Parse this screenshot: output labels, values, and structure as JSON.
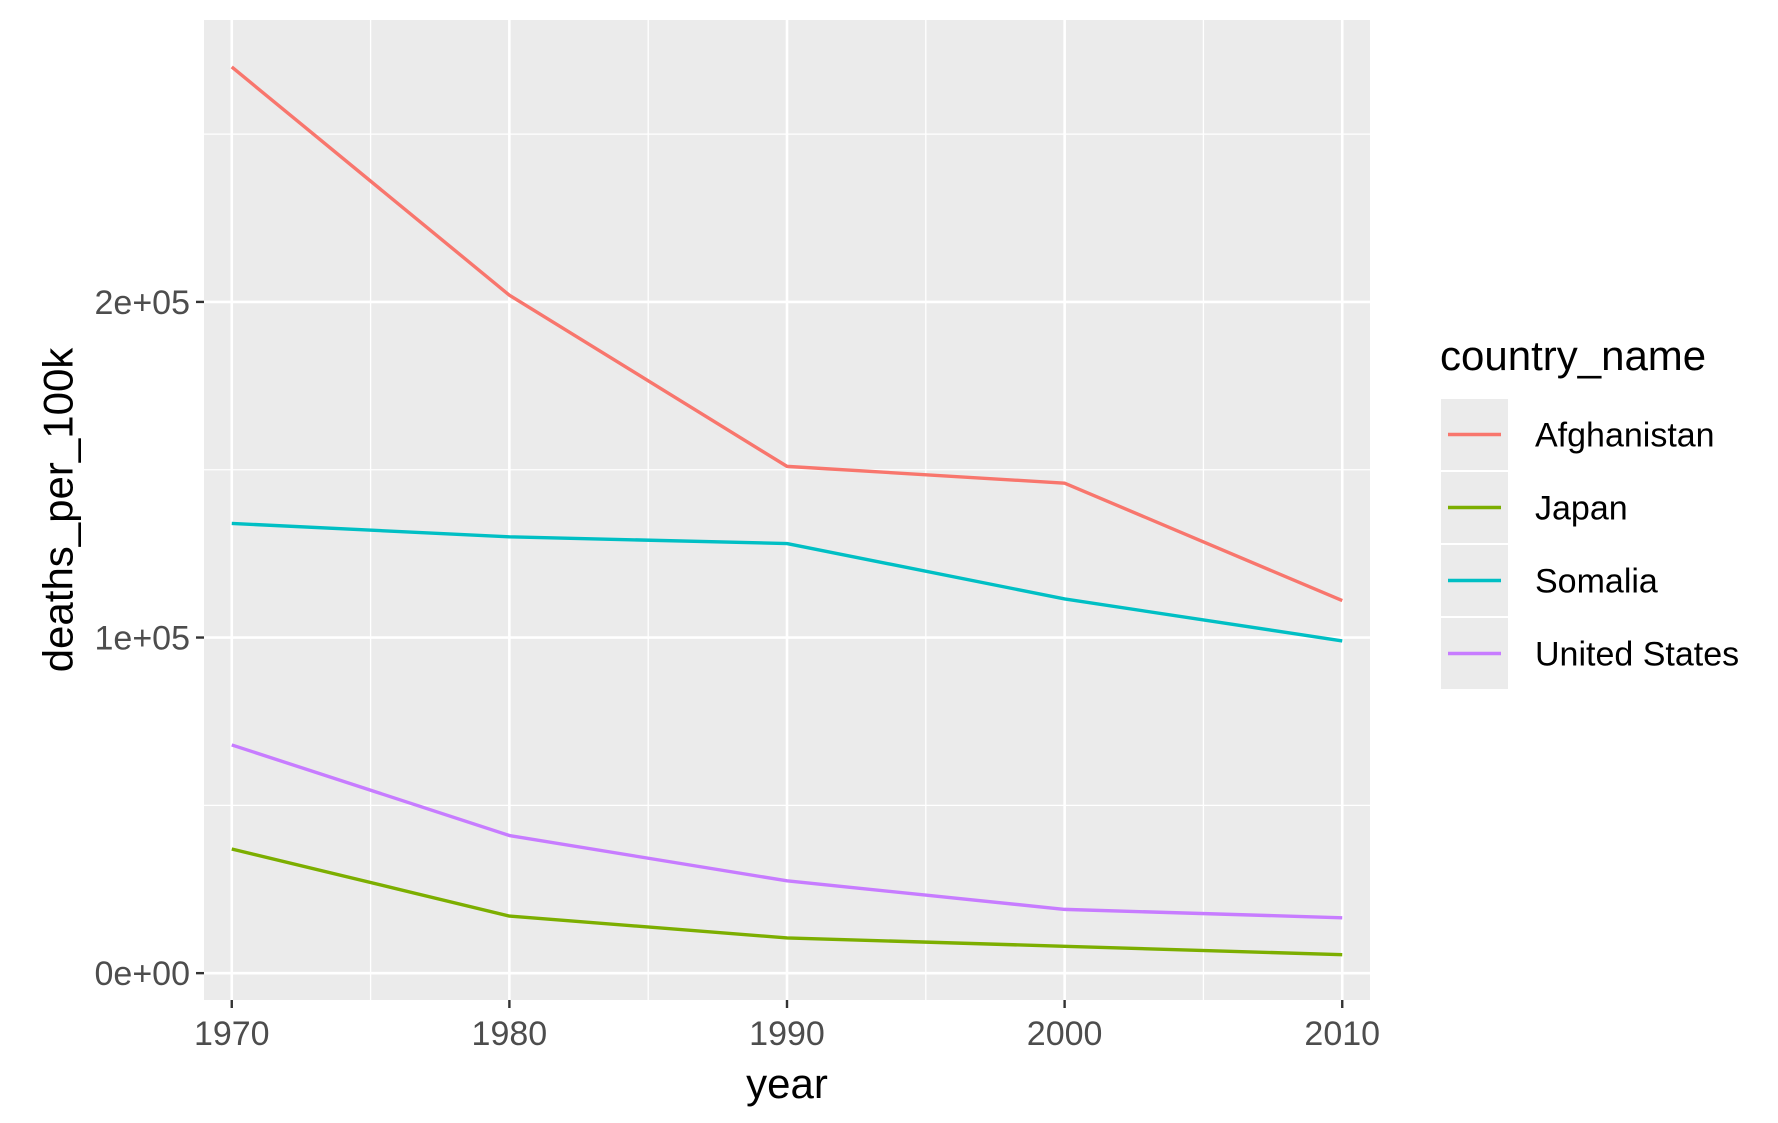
{
  "chart_data": {
    "type": "line",
    "title": "",
    "xlabel": "year",
    "ylabel": "deaths_per_100k",
    "x": [
      1970,
      1980,
      1990,
      2000,
      2010
    ],
    "x_ticks": [
      1970,
      1980,
      1990,
      2000,
      2010
    ],
    "x_tick_labels": [
      "1970",
      "1980",
      "1990",
      "2000",
      "2010"
    ],
    "y_ticks": [
      0,
      100000,
      200000
    ],
    "y_tick_labels": [
      "0e+00",
      "1e+05",
      "2e+05"
    ],
    "xlim": [
      1969,
      2011
    ],
    "ylim": [
      -8000,
      284000
    ],
    "grid": true,
    "legend": {
      "title": "country_name",
      "position": "right"
    },
    "series": [
      {
        "name": "Afghanistan",
        "color": "#F8766D",
        "values": [
          270000,
          202000,
          151000,
          146000,
          111000
        ]
      },
      {
        "name": "Japan",
        "color": "#7CAE00",
        "values": [
          37000,
          17000,
          10500,
          8000,
          5500
        ]
      },
      {
        "name": "Somalia",
        "color": "#00BFC4",
        "values": [
          134000,
          130000,
          128000,
          111500,
          99000
        ]
      },
      {
        "name": "United States",
        "color": "#C77CFF",
        "values": [
          68000,
          41000,
          27500,
          19000,
          16500
        ]
      }
    ]
  },
  "colors": {
    "panel_background": "#EBEBEB",
    "grid_major": "#FFFFFF",
    "tick_text": "#4D4D4D",
    "legend_key_background": "#EBEBEB"
  }
}
